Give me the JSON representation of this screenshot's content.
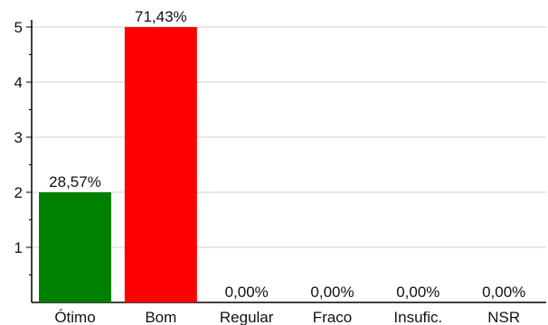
{
  "chart_data": {
    "type": "bar",
    "categories": [
      "Ótimo",
      "Bom",
      "Regular",
      "Fraco",
      "Insufic.",
      "NSR"
    ],
    "values": [
      2,
      5,
      0,
      0,
      0,
      0
    ],
    "data_labels": [
      "28,57%",
      "71,43%",
      "0,00%",
      "0,00%",
      "0,00%",
      "0,00%"
    ],
    "bar_colors": [
      "#008000",
      "#ff0000",
      "#008000",
      "#008000",
      "#008000",
      "#008000"
    ],
    "ylim": [
      0,
      5
    ],
    "yticks": [
      "1",
      "2",
      "3",
      "4",
      "5"
    ],
    "grid": true,
    "title": "",
    "xlabel": "",
    "ylabel": ""
  }
}
